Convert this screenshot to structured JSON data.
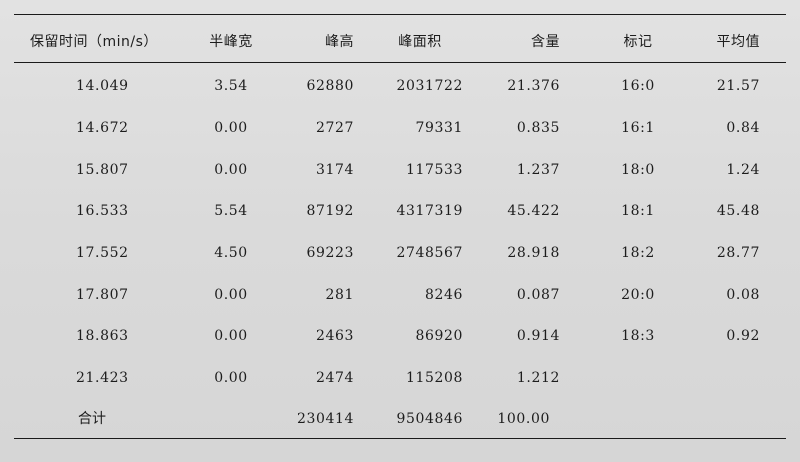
{
  "table": {
    "headers": {
      "time": "保留时间（min/s）",
      "half_width": "半峰宽",
      "peak_height": "峰高",
      "peak_area": "峰面积",
      "content": "含量",
      "mark": "标记",
      "average": "平均值"
    },
    "rows": [
      {
        "time": "14.049",
        "half_width": "3.54",
        "peak_height": "62880",
        "peak_area": "2031722",
        "content": "21.376",
        "mark": "16:0",
        "average": "21.57"
      },
      {
        "time": "14.672",
        "half_width": "0.00",
        "peak_height": "2727",
        "peak_area": "79331",
        "content": "0.835",
        "mark": "16:1",
        "average": "0.84"
      },
      {
        "time": "15.807",
        "half_width": "0.00",
        "peak_height": "3174",
        "peak_area": "117533",
        "content": "1.237",
        "mark": "18:0",
        "average": "1.24"
      },
      {
        "time": "16.533",
        "half_width": "5.54",
        "peak_height": "87192",
        "peak_area": "4317319",
        "content": "45.422",
        "mark": "18:1",
        "average": "45.48"
      },
      {
        "time": "17.552",
        "half_width": "4.50",
        "peak_height": "69223",
        "peak_area": "2748567",
        "content": "28.918",
        "mark": "18:2",
        "average": "28.77"
      },
      {
        "time": "17.807",
        "half_width": "0.00",
        "peak_height": "281",
        "peak_area": "8246",
        "content": "0.087",
        "mark": "20:0",
        "average": "0.08"
      },
      {
        "time": "18.863",
        "half_width": "0.00",
        "peak_height": "2463",
        "peak_area": "86920",
        "content": "0.914",
        "mark": "18:3",
        "average": "0.92"
      },
      {
        "time": "21.423",
        "half_width": "0.00",
        "peak_height": "2474",
        "peak_area": "115208",
        "content": "1.212",
        "mark": "",
        "average": ""
      }
    ],
    "total": {
      "label": "合计",
      "peak_height": "230414",
      "peak_area": "9504846",
      "content": "100.00"
    }
  }
}
